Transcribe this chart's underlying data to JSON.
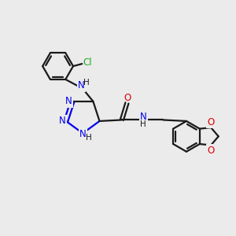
{
  "bg_color": "#ebebeb",
  "bond_color": "#1a1a1a",
  "N_color": "#0000ee",
  "O_color": "#dd0000",
  "Cl_color": "#22aa22",
  "bond_width": 1.6,
  "figsize": [
    3.0,
    3.0
  ],
  "dpi": 100,
  "xlim": [
    0,
    10
  ],
  "ylim": [
    0,
    10
  ]
}
